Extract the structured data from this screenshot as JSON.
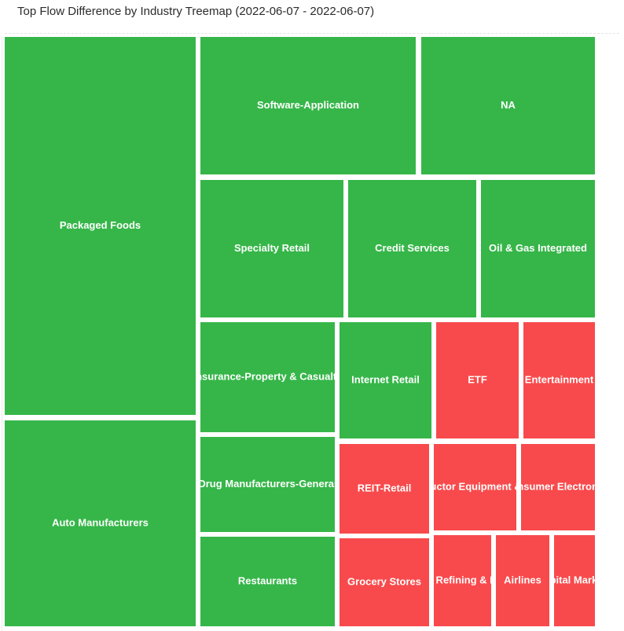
{
  "chart_data": {
    "type": "treemap",
    "title": "Top Flow Difference by Industry Treemap (2022-06-07 - 2022-06-07)",
    "colors": {
      "positive": "#36b649",
      "negative": "#f84a4c",
      "border": "#ffffff"
    },
    "items": [
      {
        "name": "Packaged Foods",
        "sign": "positive"
      },
      {
        "name": "Auto Manufacturers",
        "sign": "positive"
      },
      {
        "name": "Software-Application",
        "sign": "positive"
      },
      {
        "name": "NA",
        "sign": "positive"
      },
      {
        "name": "Specialty Retail",
        "sign": "positive"
      },
      {
        "name": "Credit Services",
        "sign": "positive"
      },
      {
        "name": "Oil & Gas Integrated",
        "sign": "positive"
      },
      {
        "name": "Insurance-Property & Casualty",
        "sign": "positive"
      },
      {
        "name": "Internet Retail",
        "sign": "positive"
      },
      {
        "name": "ETF",
        "sign": "negative"
      },
      {
        "name": "Entertainment",
        "sign": "negative"
      },
      {
        "name": "Drug Manufacturers-General",
        "sign": "positive"
      },
      {
        "name": "REIT-Retail",
        "sign": "negative"
      },
      {
        "name": "Semiconductor Equipment & Materials",
        "sign": "negative"
      },
      {
        "name": "Consumer Electronics",
        "sign": "negative"
      },
      {
        "name": "Restaurants",
        "sign": "positive"
      },
      {
        "name": "Grocery Stores",
        "sign": "negative"
      },
      {
        "name": "Oil & Gas Refining & Marketing",
        "sign": "negative"
      },
      {
        "name": "Airlines",
        "sign": "negative"
      },
      {
        "name": "Capital Markets",
        "sign": "negative"
      }
    ]
  }
}
